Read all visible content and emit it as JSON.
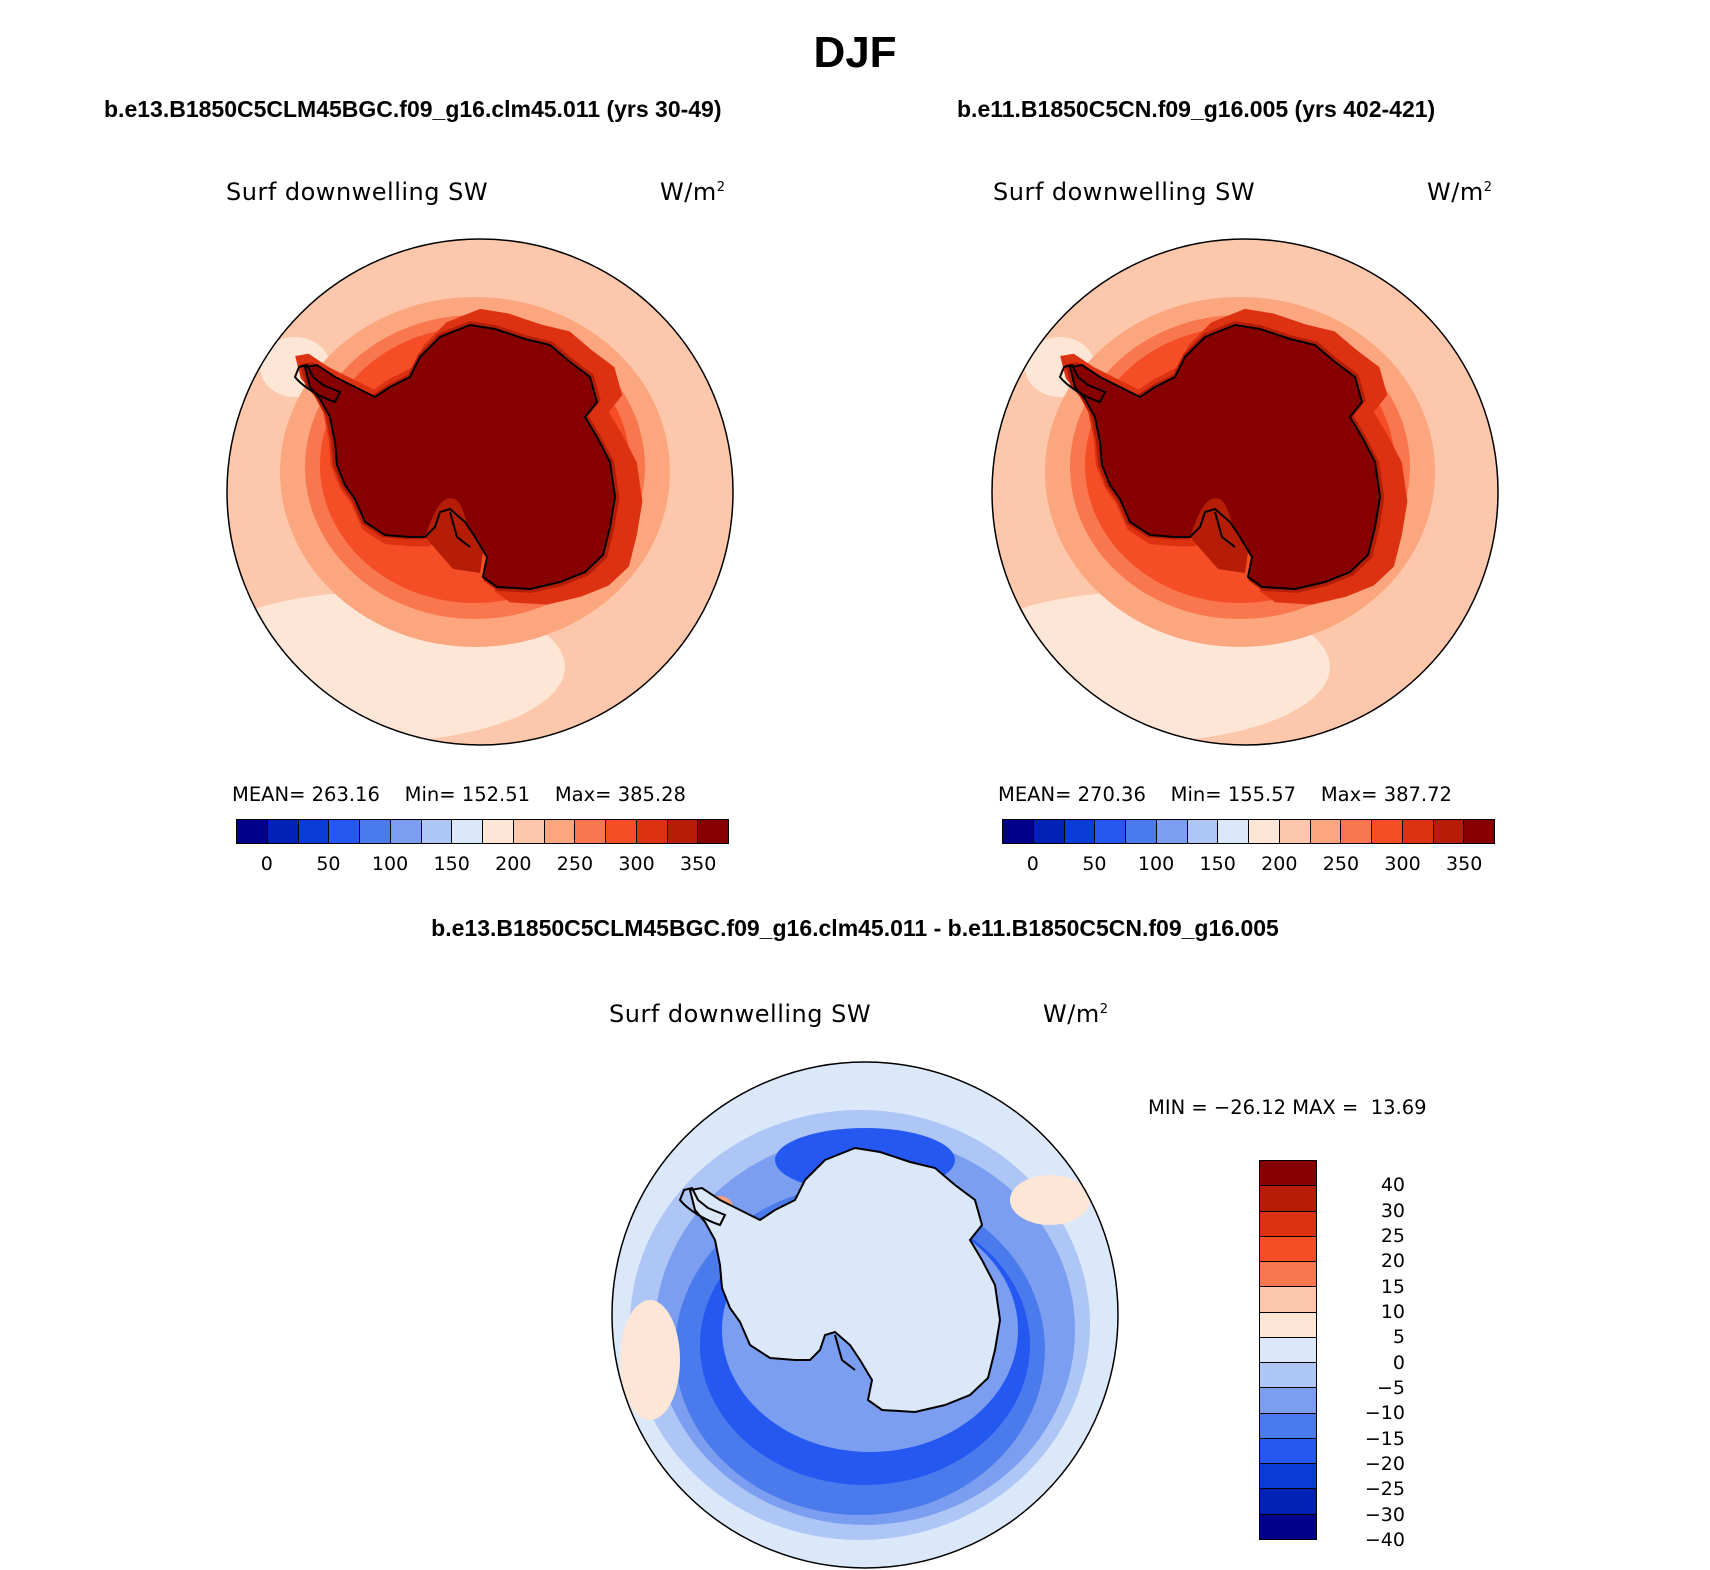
{
  "figure": {
    "season_title": "DJF",
    "case1_title": "b.e13.B1850C5CLM45BGC.f09_g16.clm45.011 (yrs 30-49)",
    "case2_title": "b.e11.B1850C5CN.f09_g16.005 (yrs 402-421)",
    "diff_title": "b.e13.B1850C5CLM45BGC.f09_g16.clm45.011 - b.e11.B1850C5CN.f09_g16.005"
  },
  "panels": [
    {
      "variable": "Surf downwelling SW",
      "units_base": "W/m",
      "units_exp": "2",
      "mean_label": "MEAN=",
      "mean_value": "263.16",
      "min_label": "Min=",
      "min_value": "152.51",
      "max_label": "Max=",
      "max_value": "385.28"
    },
    {
      "variable": "Surf downwelling SW",
      "units_base": "W/m",
      "units_exp": "2",
      "mean_label": "MEAN=",
      "mean_value": "270.36",
      "min_label": "Min=",
      "min_value": "155.57",
      "max_label": "Max=",
      "max_value": "387.72"
    },
    {
      "variable": "Surf downwelling SW",
      "units_base": "W/m",
      "units_exp": "2",
      "minmax_text": "MIN = −26.12 MAX =  13.69"
    }
  ],
  "colorbar_abs": {
    "colors": [
      "#00008b",
      "#0022b4",
      "#0a3cd8",
      "#2458f0",
      "#4a7aec",
      "#7c9ef0",
      "#adc6f6",
      "#dbe8fa",
      "#fde6d6",
      "#fcc7aa",
      "#fba67f",
      "#f9774e",
      "#f54d26",
      "#dd3211",
      "#b51d07",
      "#870000"
    ],
    "tick_labels": [
      "0",
      "50",
      "100",
      "150",
      "200",
      "250",
      "300",
      "350"
    ]
  },
  "colorbar_diff": {
    "colors": [
      "#870000",
      "#b51d07",
      "#dd3211",
      "#f54d26",
      "#f9774e",
      "#fcc7aa",
      "#fde6d6",
      "#dbe8fa",
      "#adc6f6",
      "#7c9ef0",
      "#4a7aec",
      "#2458f0",
      "#0a3cd8",
      "#0022b4",
      "#00008b"
    ],
    "tick_labels": [
      "40",
      "30",
      "25",
      "20",
      "15",
      "10",
      "5",
      "0",
      "−5",
      "−10",
      "−15",
      "−20",
      "−25",
      "−30",
      "−40"
    ]
  },
  "map_colors": {
    "abs": [
      "#fde6d6",
      "#fcc7aa",
      "#fba67f",
      "#f9774e",
      "#f54d26",
      "#dd3211",
      "#b51d07",
      "#870000"
    ],
    "diff": [
      "#dbe8fa",
      "#adc6f6",
      "#7c9ef0",
      "#4a7aec",
      "#2458f0",
      "#fde6d6"
    ]
  }
}
